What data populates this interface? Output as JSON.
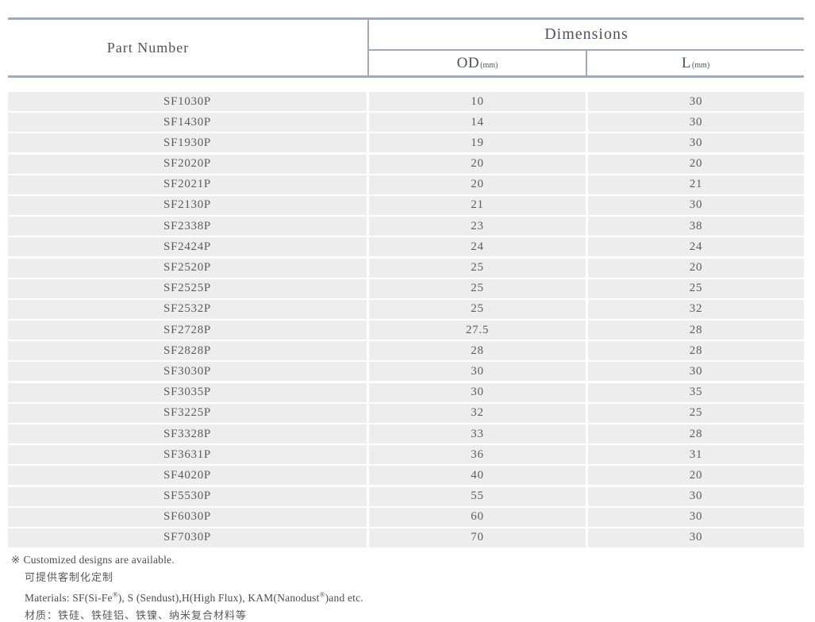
{
  "header": {
    "part_number_label": "Part Number",
    "dimensions_label": "Dimensions",
    "od_label": "OD",
    "od_unit": "(mm)",
    "l_label": "L",
    "l_unit": "(mm)"
  },
  "table": {
    "columns": [
      "Part Number",
      "OD(mm)",
      "L(mm)"
    ],
    "rows": [
      {
        "part": "SF1030P",
        "od": "10",
        "l": "30"
      },
      {
        "part": "SF1430P",
        "od": "14",
        "l": "30"
      },
      {
        "part": "SF1930P",
        "od": "19",
        "l": "30"
      },
      {
        "part": "SF2020P",
        "od": "20",
        "l": "20"
      },
      {
        "part": "SF2021P",
        "od": "20",
        "l": "21"
      },
      {
        "part": "SF2130P",
        "od": "21",
        "l": "30"
      },
      {
        "part": "SF2338P",
        "od": "23",
        "l": "38"
      },
      {
        "part": "SF2424P",
        "od": "24",
        "l": "24"
      },
      {
        "part": "SF2520P",
        "od": "25",
        "l": "20"
      },
      {
        "part": "SF2525P",
        "od": "25",
        "l": "25"
      },
      {
        "part": "SF2532P",
        "od": "25",
        "l": "32"
      },
      {
        "part": "SF2728P",
        "od": "27.5",
        "l": "28"
      },
      {
        "part": "SF2828P",
        "od": "28",
        "l": "28"
      },
      {
        "part": "SF3030P",
        "od": "30",
        "l": "30"
      },
      {
        "part": "SF3035P",
        "od": "30",
        "l": "35"
      },
      {
        "part": "SF3225P",
        "od": "32",
        "l": "25"
      },
      {
        "part": "SF3328P",
        "od": "33",
        "l": "28"
      },
      {
        "part": "SF3631P",
        "od": "36",
        "l": "31"
      },
      {
        "part": "SF4020P",
        "od": "40",
        "l": "20"
      },
      {
        "part": "SF5530P",
        "od": "55",
        "l": "30"
      },
      {
        "part": "SF6030P",
        "od": "60",
        "l": "30"
      },
      {
        "part": "SF7030P",
        "od": "70",
        "l": "30"
      }
    ]
  },
  "notes": {
    "symbol": "※",
    "customized_en": "Customized designs are available.",
    "customized_zh": "可提供客制化定制",
    "materials_en": {
      "p1": "Materials: SF(Si-Fe",
      "sup1": "®",
      "p2": "), S (Sendust),H(High Flux), KAM(Nanodust",
      "sup2": "®",
      "p3": ")and etc."
    },
    "materials_zh": "材质：铁硅、铁硅铝、铁镍、纳米复合材料等"
  },
  "colors": {
    "border": "#a0aab8",
    "row_background": "#ededee",
    "header_text": "#4e535c",
    "data_text": "#5b5c5e"
  }
}
